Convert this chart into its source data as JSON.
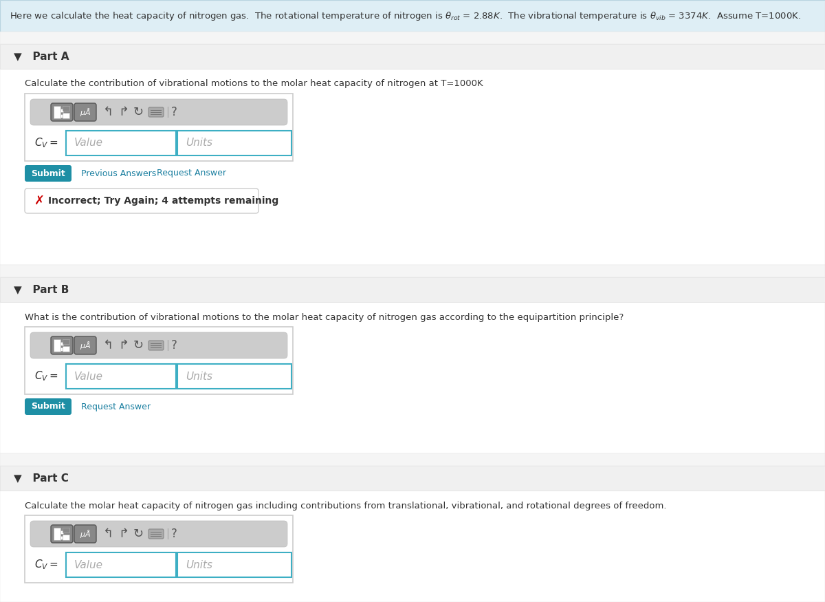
{
  "bg_color": "#ffffff",
  "header_bg": "#deeef5",
  "header_border": "#b8d4e0",
  "section_header_bg": "#f0f0f0",
  "section_header_border": "#e0e0e0",
  "content_bg": "#ffffff",
  "part_a_label": "Part A",
  "part_b_label": "Part B",
  "part_c_label": "Part C",
  "part_a_question": "Calculate the contribution of vibrational motions to the molar heat capacity of nitrogen at T=1000K",
  "part_b_question": "What is the contribution of vibrational motions to the molar heat capacity of nitrogen gas according to the equipartition principle?",
  "part_c_question": "Calculate the molar heat capacity of nitrogen gas including contributions from translational, vibrational, and rotational degrees of freedom.",
  "value_placeholder": "Value",
  "units_placeholder": "Units",
  "submit_color": "#1e8fa5",
  "submit_text_color": "#ffffff",
  "submit_label": "Submit",
  "prev_answers_label": "Previous Answers",
  "request_answer_label": "Request Answer",
  "error_text": "Incorrect; Try Again; 4 attempts remaining",
  "error_color": "#cc0000",
  "input_box_border": "#3dafc4",
  "input_bg": "#ffffff",
  "toolbar_bg": "#cccccc",
  "toolbar_border": "#bbbbbb",
  "icon_bg": "#777777",
  "icon_border": "#555555",
  "link_color": "#1a7fa0",
  "text_color": "#333333",
  "border_color": "#cccccc",
  "part_arrow": "▼",
  "header_fontsize": 9.5,
  "question_fontsize": 9.5,
  "part_label_fontsize": 11,
  "cv_fontsize": 11,
  "placeholder_fontsize": 11,
  "submit_fontsize": 9,
  "link_fontsize": 9,
  "error_fontsize": 10
}
